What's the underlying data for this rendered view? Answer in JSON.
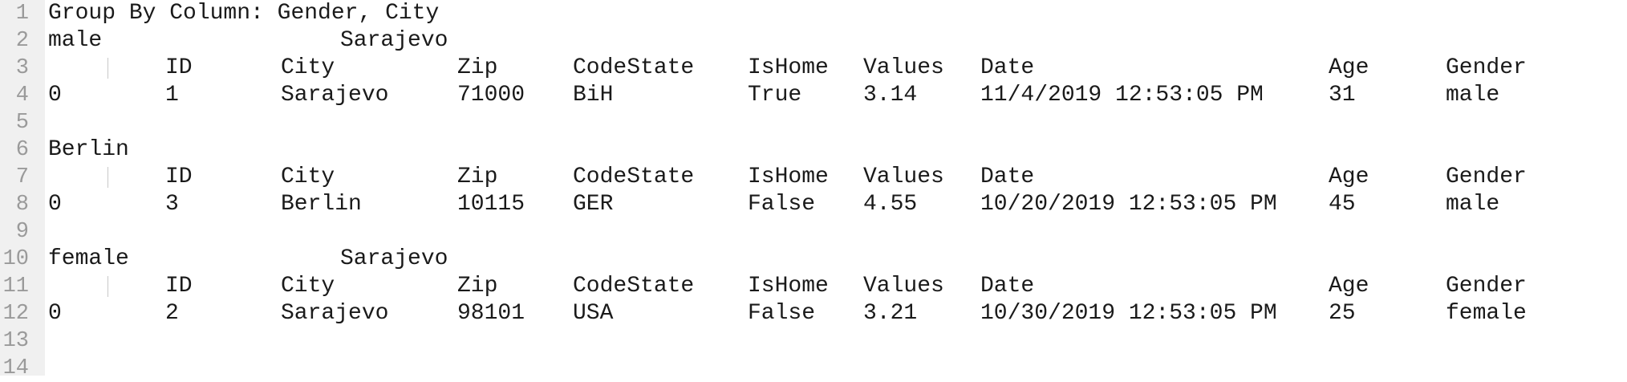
{
  "lines": [
    {
      "num": "1",
      "text": "Group By Column: Gender, City"
    },
    {
      "num": "2",
      "group": "male",
      "subgroup": "Sarajevo"
    },
    {
      "num": "3",
      "headers": [
        "ID",
        "City",
        "Zip",
        "CodeState",
        "IsHome",
        "Values",
        "Date",
        "Age",
        "Gender"
      ]
    },
    {
      "num": "4",
      "row": [
        "0",
        "1",
        "Sarajevo",
        "71000",
        "BiH",
        "True",
        "3.14",
        "11/4/2019 12:53:05 PM",
        "31",
        "male"
      ]
    },
    {
      "num": "5"
    },
    {
      "num": "6",
      "group": "Berlin"
    },
    {
      "num": "7",
      "headers": [
        "ID",
        "City",
        "Zip",
        "CodeState",
        "IsHome",
        "Values",
        "Date",
        "Age",
        "Gender"
      ]
    },
    {
      "num": "8",
      "row": [
        "0",
        "3",
        "Berlin",
        "10115",
        "GER",
        "False",
        "4.55",
        "10/20/2019 12:53:05 PM",
        "45",
        "male"
      ]
    },
    {
      "num": "9"
    },
    {
      "num": "10",
      "group": "female",
      "subgroup": "Sarajevo"
    },
    {
      "num": "11",
      "headers": [
        "ID",
        "City",
        "Zip",
        "CodeState",
        "IsHome",
        "Values",
        "Date",
        "Age",
        "Gender"
      ]
    },
    {
      "num": "12",
      "row": [
        "0",
        "2",
        "Sarajevo",
        "98101",
        "USA",
        "False",
        "3.21",
        "10/30/2019 12:53:05 PM",
        "25",
        "female"
      ]
    },
    {
      "num": "13"
    },
    {
      "num": "14"
    }
  ]
}
